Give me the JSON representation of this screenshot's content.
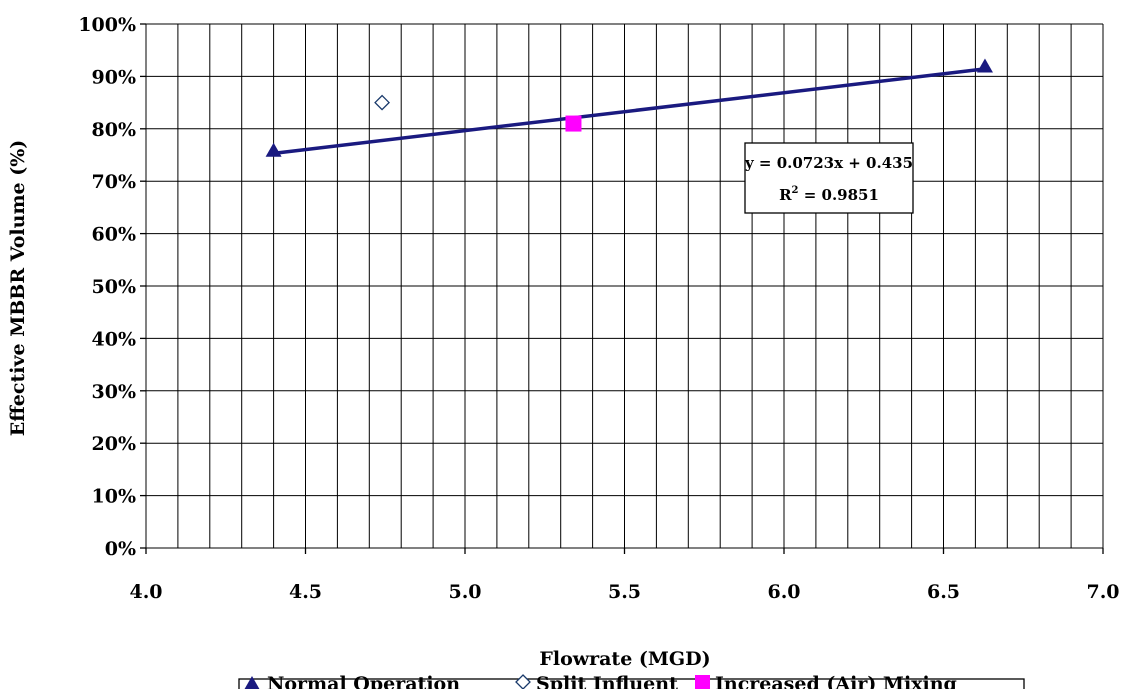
{
  "chart_data": {
    "type": "scatter",
    "xlabel": "Flowrate (MGD)",
    "ylabel": "Effective MBBR Volume (%)",
    "xlim": [
      4.0,
      7.0
    ],
    "ylim": [
      0,
      1.0
    ],
    "x_ticks": [
      "4.0",
      "4.5",
      "5.0",
      "5.5",
      "6.0",
      "6.5",
      "7.0"
    ],
    "y_ticks": [
      "0%",
      "10%",
      "20%",
      "30%",
      "40%",
      "50%",
      "60%",
      "70%",
      "80%",
      "90%",
      "100%"
    ],
    "grid": true,
    "series": [
      {
        "name": "Normal Operation",
        "marker": "filled-triangle",
        "color": "#1a1a80",
        "points": [
          {
            "x": 4.4,
            "y": 0.758
          },
          {
            "x": 6.63,
            "y": 0.919
          }
        ]
      },
      {
        "name": "Split Influent",
        "marker": "open-diamond",
        "color": "#1a3a6b",
        "points": [
          {
            "x": 4.74,
            "y": 0.85
          }
        ]
      },
      {
        "name": "Increased (Air) Mixing",
        "marker": "filled-square",
        "color": "#ff00ff",
        "points": [
          {
            "x": 5.34,
            "y": 0.81
          }
        ]
      }
    ],
    "trendline": {
      "slope": 0.0723,
      "intercept": 0.435,
      "x_range": [
        4.4,
        6.63
      ],
      "color": "#1a1a80",
      "equation": "y = 0.0723x + 0.435",
      "r2_prefix": "R",
      "r2_superscript": "2",
      "r2_suffix": " = 0.9851"
    },
    "legend": {
      "placement": "bottom",
      "entries": [
        "Normal Operation",
        "Split Influent",
        "Increased (Air) Mixing"
      ]
    }
  }
}
